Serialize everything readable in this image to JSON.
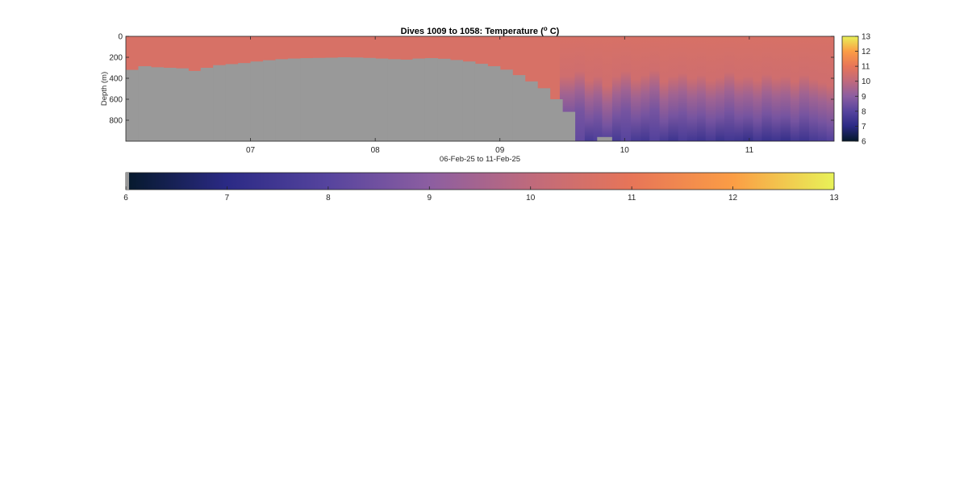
{
  "chart_data": [
    {
      "type": "heatmap",
      "title": "Dives 1009 to 1058: Temperature (° C)",
      "title_parts": {
        "main": "Dives 1009 to 1058: Temperature (",
        "superscript": "o",
        "tail": " C)"
      },
      "xlabel": "06-Feb-25 to 11-Feb-25",
      "ylabel": "Depth (m)",
      "xlim": [
        6.0,
        11.68
      ],
      "ylim": [
        0,
        1000
      ],
      "y_reversed": true,
      "x_ticks": [
        7,
        8,
        9,
        10,
        11
      ],
      "x_tick_labels": [
        "07",
        "08",
        "09",
        "10",
        "11"
      ],
      "y_ticks": [
        0,
        200,
        400,
        600,
        800
      ],
      "y_tick_labels": [
        "0",
        "200",
        "400",
        "600",
        "800"
      ],
      "grid": false,
      "nodata_color": "#999999",
      "value_range": [
        6,
        13
      ],
      "colorbar": {
        "placement": "right",
        "ticks": [
          6,
          7,
          8,
          9,
          10,
          11,
          12,
          13
        ],
        "tick_labels": [
          "6",
          "7",
          "8",
          "9",
          "10",
          "11",
          "12",
          "13"
        ]
      },
      "dives_bottom_depth": [
        {
          "x0": 6.0,
          "x1": 6.1,
          "depth": 320
        },
        {
          "x0": 6.1,
          "x1": 6.2,
          "depth": 285
        },
        {
          "x0": 6.2,
          "x1": 6.3,
          "depth": 295
        },
        {
          "x0": 6.3,
          "x1": 6.4,
          "depth": 300
        },
        {
          "x0": 6.4,
          "x1": 6.5,
          "depth": 305
        },
        {
          "x0": 6.5,
          "x1": 6.6,
          "depth": 330
        },
        {
          "x0": 6.6,
          "x1": 6.7,
          "depth": 300
        },
        {
          "x0": 6.7,
          "x1": 6.8,
          "depth": 275
        },
        {
          "x0": 6.8,
          "x1": 6.9,
          "depth": 265
        },
        {
          "x0": 6.9,
          "x1": 7.0,
          "depth": 255
        },
        {
          "x0": 7.0,
          "x1": 7.1,
          "depth": 240
        },
        {
          "x0": 7.1,
          "x1": 7.2,
          "depth": 228
        },
        {
          "x0": 7.2,
          "x1": 7.3,
          "depth": 218
        },
        {
          "x0": 7.3,
          "x1": 7.4,
          "depth": 212
        },
        {
          "x0": 7.4,
          "x1": 7.5,
          "depth": 208
        },
        {
          "x0": 7.5,
          "x1": 7.6,
          "depth": 206
        },
        {
          "x0": 7.6,
          "x1": 7.7,
          "depth": 204
        },
        {
          "x0": 7.7,
          "x1": 7.8,
          "depth": 200
        },
        {
          "x0": 7.8,
          "x1": 7.9,
          "depth": 202
        },
        {
          "x0": 7.9,
          "x1": 8.0,
          "depth": 206
        },
        {
          "x0": 8.0,
          "x1": 8.1,
          "depth": 212
        },
        {
          "x0": 8.1,
          "x1": 8.2,
          "depth": 218
        },
        {
          "x0": 8.2,
          "x1": 8.3,
          "depth": 222
        },
        {
          "x0": 8.3,
          "x1": 8.4,
          "depth": 212
        },
        {
          "x0": 8.4,
          "x1": 8.5,
          "depth": 208
        },
        {
          "x0": 8.5,
          "x1": 8.6,
          "depth": 214
        },
        {
          "x0": 8.6,
          "x1": 8.7,
          "depth": 226
        },
        {
          "x0": 8.7,
          "x1": 8.8,
          "depth": 240
        },
        {
          "x0": 8.8,
          "x1": 8.9,
          "depth": 262
        },
        {
          "x0": 8.9,
          "x1": 9.0,
          "depth": 285
        },
        {
          "x0": 9.0,
          "x1": 9.1,
          "depth": 318
        },
        {
          "x0": 9.1,
          "x1": 9.2,
          "depth": 370
        },
        {
          "x0": 9.2,
          "x1": 9.3,
          "depth": 430
        },
        {
          "x0": 9.3,
          "x1": 9.4,
          "depth": 495
        },
        {
          "x0": 9.4,
          "x1": 9.5,
          "depth": 600
        },
        {
          "x0": 9.5,
          "x1": 9.6,
          "depth": 720
        },
        {
          "x0": 9.6,
          "x1": 9.68,
          "depth": 1000
        }
      ],
      "nodata_patches": [
        {
          "x0": 9.78,
          "x1": 9.9,
          "depth_top": 960,
          "depth_bottom": 1000
        }
      ],
      "profiles": [
        {
          "x0": 9.48,
          "x1": 9.6,
          "mix_depth": 380,
          "bottom_temp": 8.6
        },
        {
          "x0": 9.6,
          "x1": 9.68,
          "mix_depth": 330,
          "bottom_temp": 8.2
        },
        {
          "x0": 9.68,
          "x1": 9.75,
          "mix_depth": 420,
          "bottom_temp": 7.6
        },
        {
          "x0": 9.75,
          "x1": 9.82,
          "mix_depth": 380,
          "bottom_temp": 7.8
        },
        {
          "x0": 9.82,
          "x1": 9.9,
          "mix_depth": 470,
          "bottom_temp": 7.8
        },
        {
          "x0": 9.9,
          "x1": 9.97,
          "mix_depth": 380,
          "bottom_temp": 7.6
        },
        {
          "x0": 9.97,
          "x1": 10.05,
          "mix_depth": 330,
          "bottom_temp": 8.0
        },
        {
          "x0": 10.05,
          "x1": 10.13,
          "mix_depth": 410,
          "bottom_temp": 7.6
        },
        {
          "x0": 10.13,
          "x1": 10.2,
          "mix_depth": 370,
          "bottom_temp": 7.5
        },
        {
          "x0": 10.2,
          "x1": 10.28,
          "mix_depth": 320,
          "bottom_temp": 7.9
        },
        {
          "x0": 10.28,
          "x1": 10.35,
          "mix_depth": 430,
          "bottom_temp": 7.6
        },
        {
          "x0": 10.35,
          "x1": 10.43,
          "mix_depth": 380,
          "bottom_temp": 7.4
        },
        {
          "x0": 10.43,
          "x1": 10.5,
          "mix_depth": 350,
          "bottom_temp": 7.7
        },
        {
          "x0": 10.5,
          "x1": 10.58,
          "mix_depth": 400,
          "bottom_temp": 7.5
        },
        {
          "x0": 10.58,
          "x1": 10.65,
          "mix_depth": 370,
          "bottom_temp": 7.4
        },
        {
          "x0": 10.65,
          "x1": 10.73,
          "mix_depth": 420,
          "bottom_temp": 7.6
        },
        {
          "x0": 10.73,
          "x1": 10.8,
          "mix_depth": 390,
          "bottom_temp": 7.3
        },
        {
          "x0": 10.8,
          "x1": 10.88,
          "mix_depth": 340,
          "bottom_temp": 7.5
        },
        {
          "x0": 10.88,
          "x1": 10.95,
          "mix_depth": 400,
          "bottom_temp": 7.4
        },
        {
          "x0": 10.95,
          "x1": 11.03,
          "mix_depth": 380,
          "bottom_temp": 7.2
        },
        {
          "x0": 11.03,
          "x1": 11.1,
          "mix_depth": 420,
          "bottom_temp": 7.5
        },
        {
          "x0": 11.1,
          "x1": 11.18,
          "mix_depth": 360,
          "bottom_temp": 7.3
        },
        {
          "x0": 11.18,
          "x1": 11.25,
          "mix_depth": 400,
          "bottom_temp": 7.4
        },
        {
          "x0": 11.25,
          "x1": 11.33,
          "mix_depth": 380,
          "bottom_temp": 7.2
        },
        {
          "x0": 11.33,
          "x1": 11.4,
          "mix_depth": 430,
          "bottom_temp": 7.5
        },
        {
          "x0": 11.4,
          "x1": 11.48,
          "mix_depth": 370,
          "bottom_temp": 7.4
        },
        {
          "x0": 11.48,
          "x1": 11.55,
          "mix_depth": 410,
          "bottom_temp": 7.6
        },
        {
          "x0": 11.55,
          "x1": 11.62,
          "mix_depth": 440,
          "bottom_temp": 7.7
        },
        {
          "x0": 11.62,
          "x1": 11.68,
          "mix_depth": 470,
          "bottom_temp": 7.9
        }
      ],
      "surface_temp": 10.6
    },
    {
      "type": "colorbar",
      "value_range": [
        6,
        13
      ],
      "placement": "bottom",
      "ticks": [
        6,
        7,
        8,
        9,
        10,
        11,
        12,
        13
      ],
      "tick_labels": [
        "6",
        "7",
        "8",
        "9",
        "10",
        "11",
        "12",
        "13"
      ],
      "nodata_color": "#999999"
    }
  ],
  "colormap": [
    "#05192b",
    "#2b2a85",
    "#56449e",
    "#8c5ea1",
    "#bf6a7c",
    "#e77558",
    "#fb9d45",
    "#e8f258"
  ]
}
